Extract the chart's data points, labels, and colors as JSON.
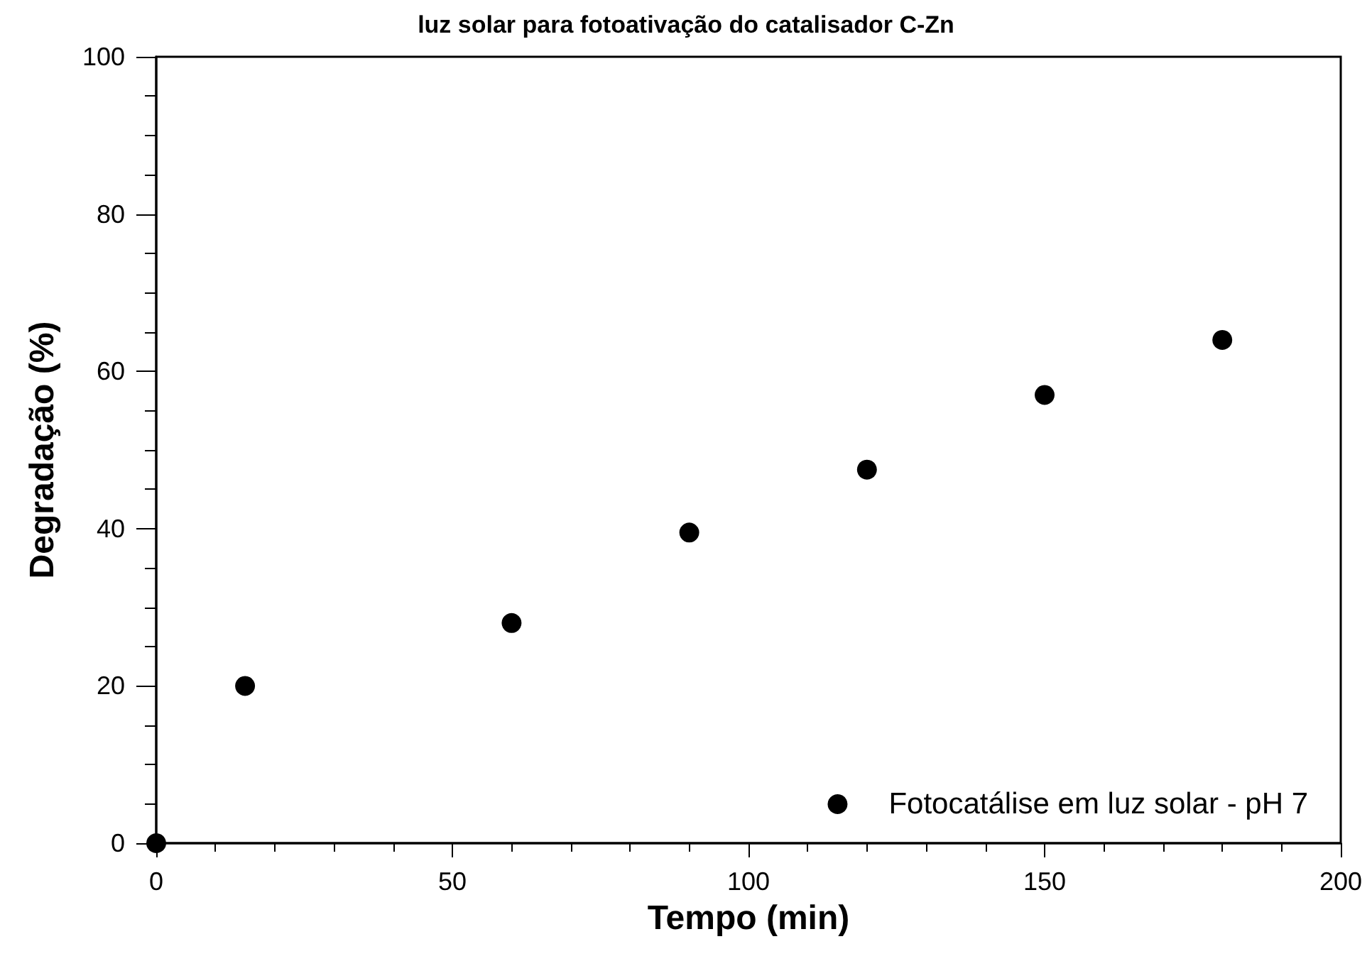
{
  "chart_data": {
    "type": "scatter",
    "title": "luz solar para fotoativação do catalisador C-Zn",
    "xlabel": "Tempo (min)",
    "ylabel": "Degradação (%)",
    "x": [
      0,
      15,
      60,
      90,
      120,
      150,
      180
    ],
    "series": [
      {
        "name": "Fotocatálise em luz solar - pH 7",
        "color": "#000000",
        "values": [
          0,
          20,
          28,
          39.5,
          47.5,
          57,
          64
        ]
      }
    ],
    "xlim": [
      0,
      200
    ],
    "xticks": [
      0,
      50,
      100,
      150,
      200
    ],
    "ylim": [
      0,
      100
    ],
    "yticks": [
      0,
      20,
      40,
      60,
      80,
      100
    ],
    "grid": false,
    "legend": "bottom right",
    "marker": "circle"
  }
}
